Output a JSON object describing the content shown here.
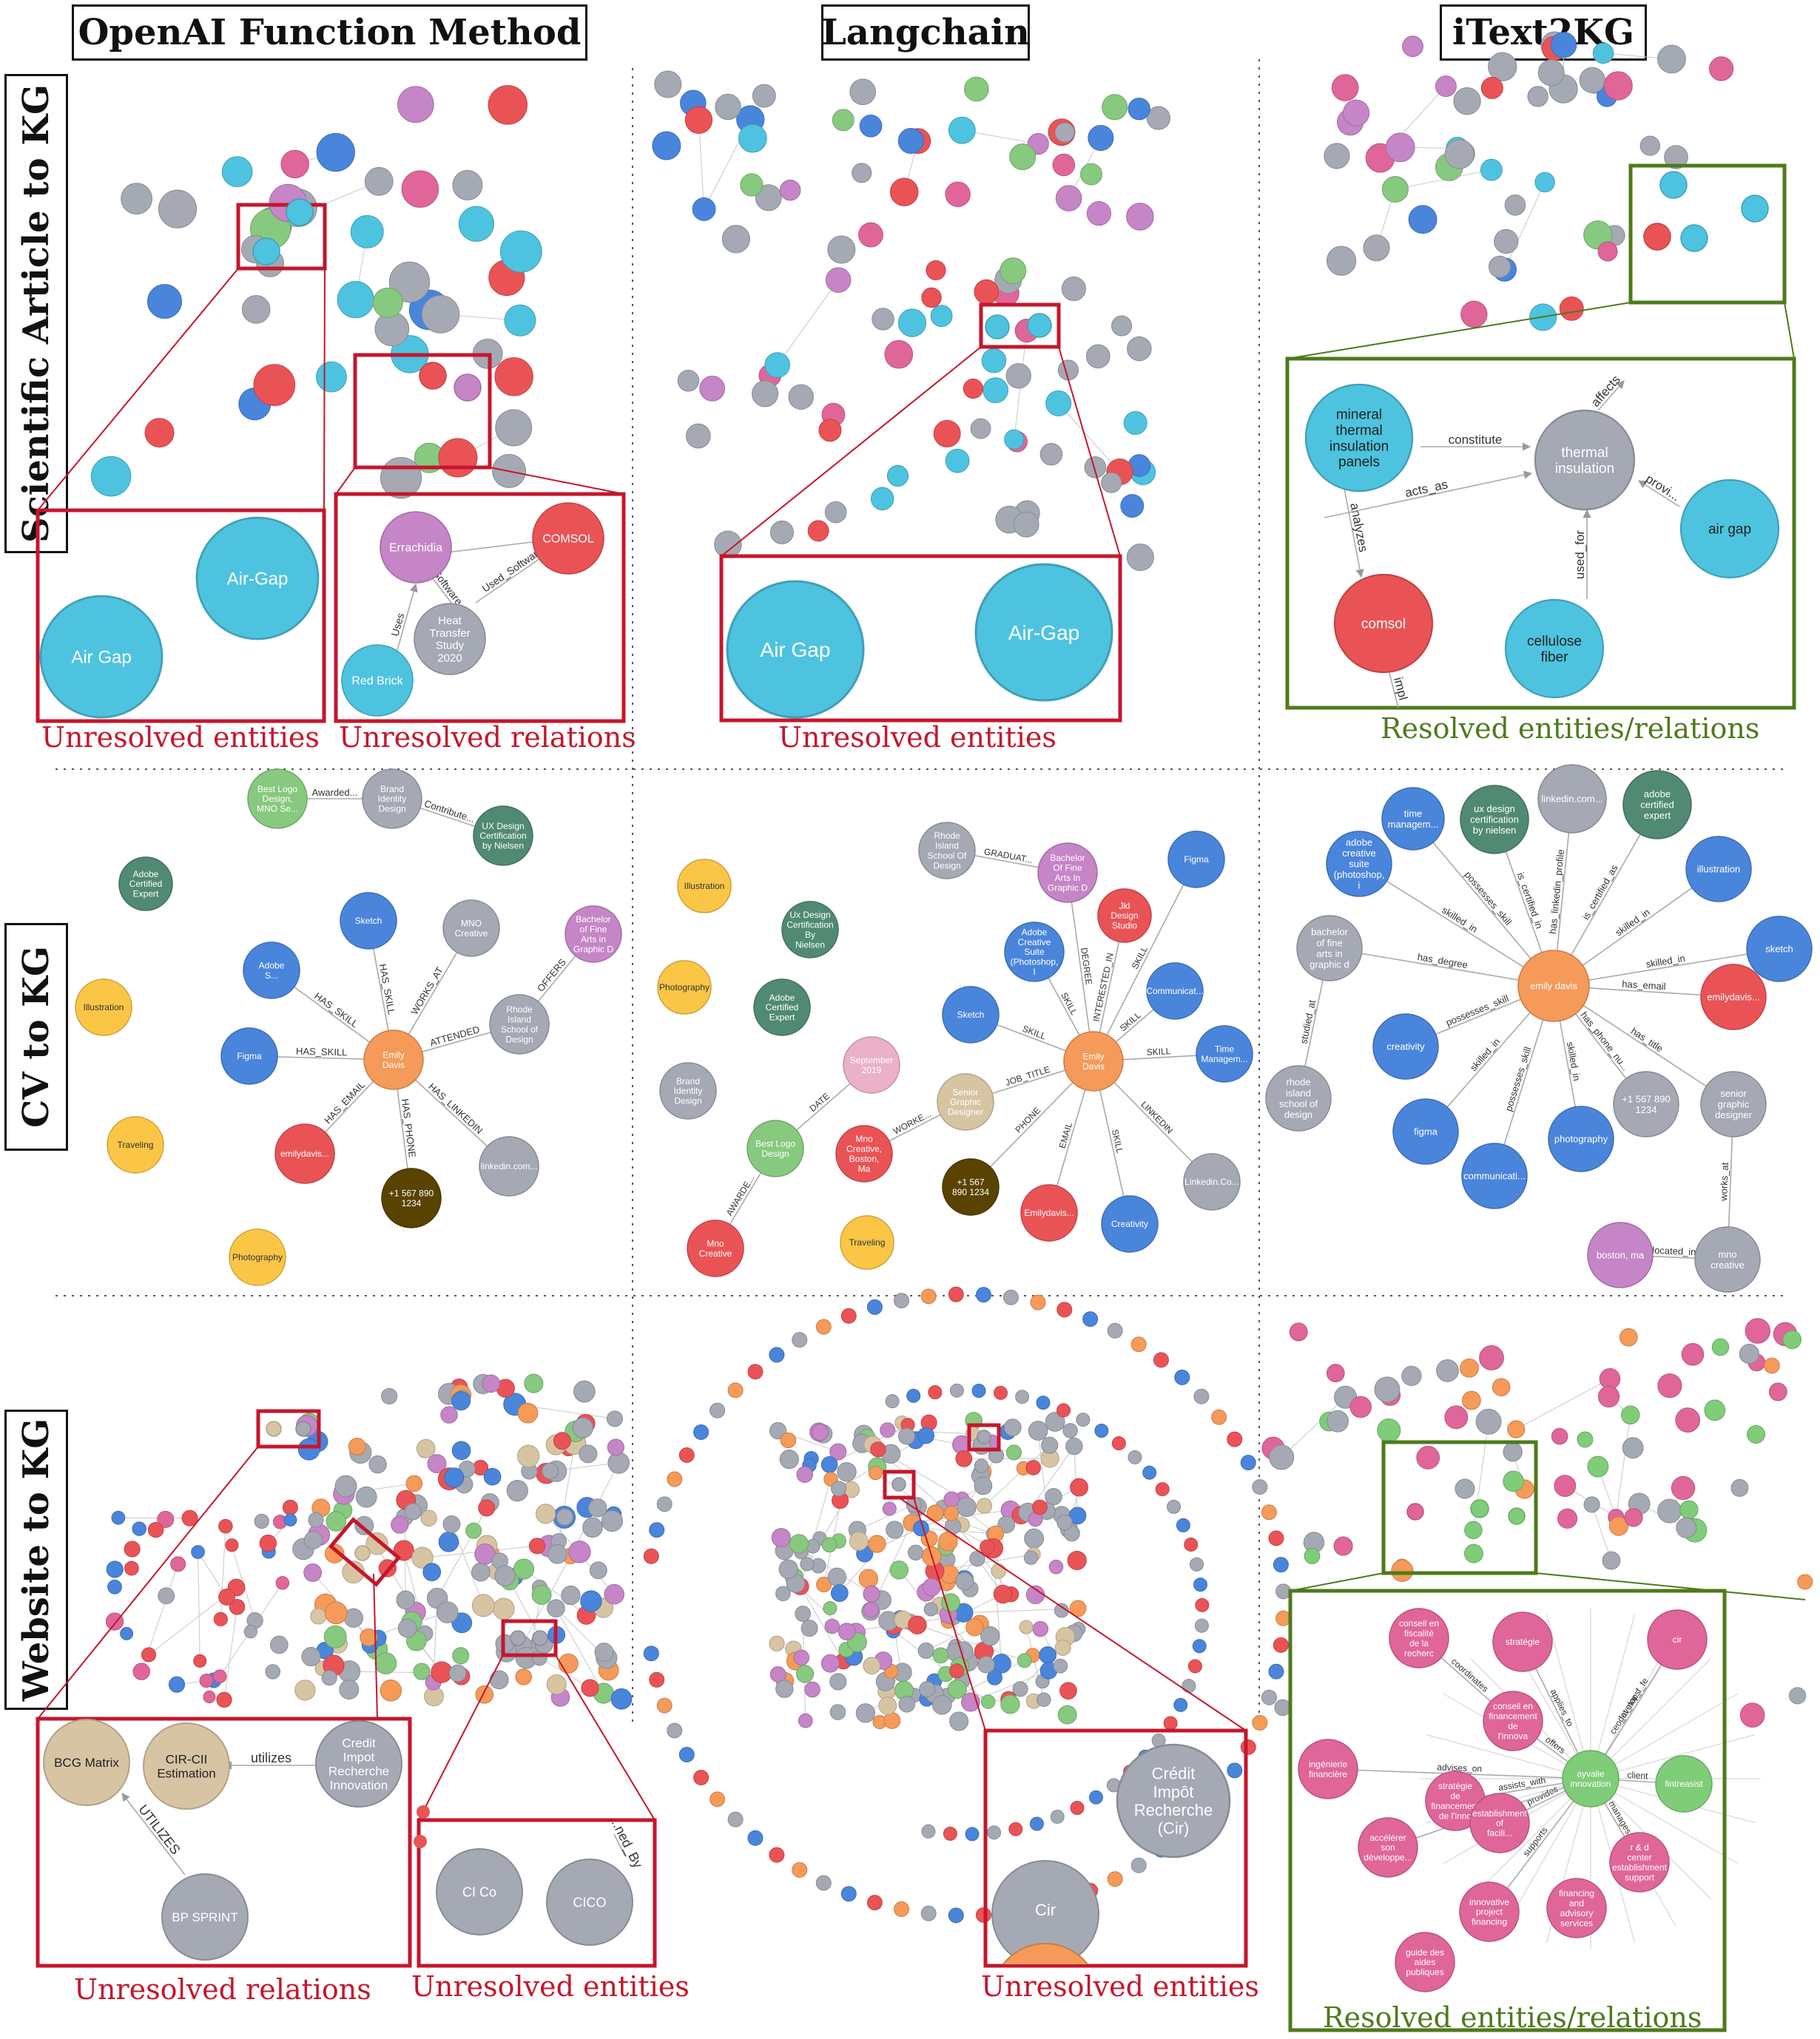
{
  "columns": [
    "OpenAI Function Method",
    "Langchain",
    "iText2KG"
  ],
  "rows": [
    "Scientific Article to KG",
    "CV to KG",
    "Website to KG"
  ],
  "captions": {
    "sci_openai_entities": "Unresolved entities",
    "sci_openai_relations": "Unresolved relations",
    "sci_langchain": "Unresolved entities",
    "sci_itext": "Resolved entities/relations",
    "web_openai_relations": "Unresolved relations",
    "web_openai_entities": "Unresolved entities",
    "web_langchain": "Unresolved entities",
    "web_itext": "Resolved entities/relations"
  },
  "colors": {
    "cyan": "#4ec3df",
    "gray": "#a5a9b4",
    "pink": "#e0669a",
    "blue": "#4a85dc",
    "green": "#87c97e",
    "dgreen": "#508a72",
    "orange": "#f59a59",
    "red": "#ea5356",
    "purple": "#c585c7",
    "yellow": "#fbc646",
    "tan": "#d7c4a3",
    "brown": "#5a4300",
    "lpink": "#eab1c8",
    "lgreen": "#7fcd78",
    "frameRed": "#c5162c",
    "frameGreen": "#4e7a1b"
  },
  "zooms": {
    "sci_openai_entities": [
      "Air-Gap",
      "Air Gap"
    ],
    "sci_openai_relations": {
      "nodes": [
        "Errachidia",
        "COMSOL",
        "Heat Transfer Study 2020",
        "Red Brick"
      ],
      "edges": [
        "Uses",
        "Used_Software"
      ]
    },
    "sci_langchain": [
      "Air Gap",
      "Air-Gap"
    ],
    "sci_itext": {
      "nodes": [
        "mineral thermal insulation panels",
        "thermal insulation",
        "air gap",
        "comsol",
        "cellulose fiber"
      ],
      "edges": [
        "constitute",
        "affects",
        "analyzes",
        "acts_as",
        "used_for",
        "provi...",
        "impl"
      ]
    },
    "web_openai_relations": {
      "nodes": [
        "BCG Matrix",
        "CIR-CII Estimation",
        "Credit Impot Recherche Innovation",
        "BP SPRINT"
      ],
      "edges": [
        "utilizes",
        "UTILIZES"
      ]
    },
    "web_openai_entities": {
      "nodes": [
        "CI Co",
        "CICO"
      ],
      "edges": [
        "...ned_By"
      ]
    },
    "web_langchain": [
      "Crédit Impôt Recherche (Cir)",
      "Cir"
    ],
    "web_itext": {
      "nodes": [
        "conseil en fiscalité de la recherc",
        "stratégie",
        "cir",
        "conseil en financement de l'innova",
        "ingénierie financière",
        "stratégie de financement de l'inno",
        "ayvalie innovation",
        "fintreasist",
        "accélérer son développe...",
        "establishment of facili...",
        "r & d center establishment support",
        "innovative project financing",
        "financing and advisory services",
        "guide des aides publiques"
      ],
      "edges": [
        "coordinates",
        "applies_to",
        "develops",
        "advises_on",
        "assists_with",
        "offers",
        "provides",
        "specializes_in",
        "supports",
        "client",
        "ceo_at_nar_f_fe",
        "manages"
      ]
    }
  },
  "cv": {
    "openai": {
      "nodes": [
        "Best Logo Design, MNO Se...",
        "Brand Identity Design",
        "UX Design Certification by Nielsen",
        "Adobe Certified Expert",
        "Sketch",
        "MNO Creative",
        "Bachelor of Fine Arts in Graphic D",
        "Adobe S...",
        "Illustration",
        "Rhode Island School of Design",
        "Figma",
        "Emily Davis",
        "Traveling",
        "emilydavis...",
        "linkedin.com...",
        "+1 567 890 1234",
        "Photography"
      ],
      "edges": [
        "Awarded...",
        "Contribute...",
        "HAS_SKILL",
        "WORKS_AT",
        "OFFERS",
        "HAS_SKILL",
        "ATTENDED",
        "HAS_SKILL",
        "HAS_EMAIL",
        "HAS_PHONE",
        "HAS_LINKEDIN"
      ]
    },
    "langchain": {
      "nodes": [
        "Rhode Island School Of Design",
        "Bachelor Of Fine Arts In Graphic D",
        "Figma",
        "Illustration",
        "Jkl Design Studio",
        "Ux Design Certification By Nielsen",
        "Adobe Creative Suite (Photoshop, I",
        "Communicat...",
        "Photography",
        "Adobe Certified Expert",
        "Sketch",
        "Emily Davis",
        "Time Managem...",
        "September 2019",
        "Brand Identity Design",
        "Senior Graphic Designer",
        "Best Logo Design",
        "Mno Creative, Boston, Ma",
        "+1 567 890 1234",
        "Emilydavis...",
        "Linkedin.Co...",
        "Mno Creative",
        "Traveling",
        "Creativity"
      ],
      "edges": [
        "GRADUAT...",
        "DEGREE",
        "INTERESTED_IN",
        "SKILL",
        "SKILL",
        "SKILL",
        "SKILL",
        "SKILL",
        "JOB_TITLE",
        "DATE",
        "WORKE...",
        "PHONE",
        "EMAIL",
        "SKILL",
        "LINKEDIN",
        "AWARDE..."
      ]
    },
    "itext": {
      "nodes": [
        "time managem...",
        "ux design certification by nielsen",
        "linkedin.com...",
        "adobe certified expert",
        "adobe creative suite (photoshop, i",
        "illustration",
        "bachelor of fine arts in graphic d",
        "sketch",
        "emily davis",
        "emilydavis...",
        "creativity",
        "rhode island school of design",
        "+1 567 890 1234",
        "senior graphic designer",
        "figma",
        "photography",
        "communicati...",
        "boston, ma",
        "mno creative"
      ],
      "edges": [
        "possesses_skill",
        "is_certified_in",
        "has_linkedin_profile",
        "is_certified_as",
        "skilled_in",
        "skilled_in",
        "has_degree",
        "skilled_in",
        "has_email",
        "possesses_skill",
        "skilled_in",
        "studied_at",
        "has_phone_nu...",
        "has_title",
        "skilled_in",
        "possesses_skill",
        "works_at",
        "located_in"
      ]
    }
  }
}
